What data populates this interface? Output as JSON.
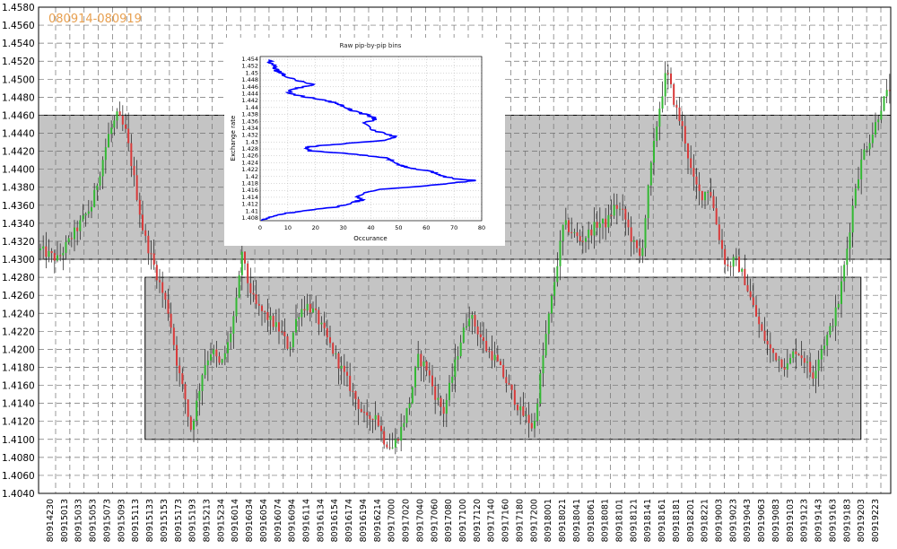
{
  "chart_data": [
    {
      "type": "candlestick",
      "title": "080914-080919",
      "ylim": [
        1.404,
        1.458
      ],
      "yticks": [
        "1.4580",
        "1.4560",
        "1.4540",
        "1.4520",
        "1.4500",
        "1.4480",
        "1.4460",
        "1.4440",
        "1.4420",
        "1.4400",
        "1.4380",
        "1.4360",
        "1.4340",
        "1.4320",
        "1.4300",
        "1.4280",
        "1.4260",
        "1.4240",
        "1.4220",
        "1.4200",
        "1.4180",
        "1.4160",
        "1.4140",
        "1.4120",
        "1.4100",
        "1.4080",
        "1.4060",
        "1.4040"
      ],
      "xticks": [
        "80914230",
        "80915013",
        "80915033",
        "80915053",
        "80915073",
        "80915093",
        "80915113",
        "80915133",
        "80915153",
        "80915173",
        "80915193",
        "80915213",
        "80915234",
        "80916014",
        "80916034",
        "80916054",
        "80916074",
        "80916094",
        "80916114",
        "80916134",
        "80916154",
        "80916174",
        "80916194",
        "80916214",
        "80917000",
        "80917020",
        "80917040",
        "80917060",
        "80917080",
        "80917100",
        "80917120",
        "80917140",
        "80917160",
        "80917180",
        "80917200",
        "80918001",
        "80918021",
        "80918041",
        "80918061",
        "80918081",
        "80918101",
        "80918121",
        "80918141",
        "80918161",
        "80918181",
        "80918201",
        "80918221",
        "80919003",
        "80919023",
        "80919043",
        "80919063",
        "80919083",
        "80919103",
        "80919123",
        "80919143",
        "80919163",
        "80919183",
        "80919203",
        "80919223"
      ],
      "path": [
        [
          0,
          1.431
        ],
        [
          2,
          1.43
        ],
        [
          4,
          1.433
        ],
        [
          6,
          1.436
        ],
        [
          8,
          1.444
        ],
        [
          9,
          1.446
        ],
        [
          10,
          1.444
        ],
        [
          12,
          1.433
        ],
        [
          13,
          1.43
        ],
        [
          14,
          1.427
        ],
        [
          15,
          1.424
        ],
        [
          16,
          1.418
        ],
        [
          17,
          1.414
        ],
        [
          17.5,
          1.411
        ],
        [
          18,
          1.413
        ],
        [
          19,
          1.418
        ],
        [
          20,
          1.42
        ],
        [
          21,
          1.418
        ],
        [
          22,
          1.421
        ],
        [
          23,
          1.426
        ],
        [
          23.5,
          1.431
        ],
        [
          24,
          1.428
        ],
        [
          25,
          1.425
        ],
        [
          26,
          1.424
        ],
        [
          27,
          1.423
        ],
        [
          28,
          1.422
        ],
        [
          29,
          1.42
        ],
        [
          30,
          1.424
        ],
        [
          31,
          1.425
        ],
        [
          32,
          1.424
        ],
        [
          33,
          1.422
        ],
        [
          34,
          1.42
        ],
        [
          35,
          1.418
        ],
        [
          36,
          1.416
        ],
        [
          37,
          1.414
        ],
        [
          38,
          1.412
        ],
        [
          39,
          1.413
        ],
        [
          40,
          1.41
        ],
        [
          41,
          1.409
        ],
        [
          42,
          1.411
        ],
        [
          43,
          1.414
        ],
        [
          44,
          1.419
        ],
        [
          45,
          1.418
        ],
        [
          46,
          1.415
        ],
        [
          47,
          1.413
        ],
        [
          48,
          1.417
        ],
        [
          49,
          1.421
        ],
        [
          50,
          1.424
        ],
        [
          51,
          1.422
        ],
        [
          52,
          1.42
        ],
        [
          53,
          1.419
        ],
        [
          54,
          1.417
        ],
        [
          55,
          1.415
        ],
        [
          56,
          1.413
        ],
        [
          57,
          1.412
        ],
        [
          57.5,
          1.411
        ],
        [
          58,
          1.415
        ],
        [
          59,
          1.422
        ],
        [
          60,
          1.428
        ],
        [
          61,
          1.434
        ],
        [
          62,
          1.433
        ],
        [
          63,
          1.432
        ],
        [
          64,
          1.433
        ],
        [
          65,
          1.434
        ],
        [
          66,
          1.434
        ],
        [
          67,
          1.436
        ],
        [
          68,
          1.435
        ],
        [
          69,
          1.432
        ],
        [
          70,
          1.43
        ],
        [
          71,
          1.439
        ],
        [
          72,
          1.446
        ],
        [
          73,
          1.451
        ],
        [
          73.5,
          1.449
        ],
        [
          74,
          1.447
        ],
        [
          75,
          1.444
        ],
        [
          76,
          1.439
        ],
        [
          77,
          1.437
        ],
        [
          78,
          1.438
        ],
        [
          79,
          1.433
        ],
        [
          80,
          1.429
        ],
        [
          81,
          1.43
        ],
        [
          82,
          1.428
        ],
        [
          83,
          1.425
        ],
        [
          84,
          1.422
        ],
        [
          85,
          1.42
        ],
        [
          86,
          1.419
        ],
        [
          87,
          1.418
        ],
        [
          88,
          1.42
        ],
        [
          89,
          1.419
        ],
        [
          90,
          1.417
        ],
        [
          91,
          1.42
        ],
        [
          92,
          1.422
        ],
        [
          93,
          1.425
        ],
        [
          94,
          1.431
        ],
        [
          95,
          1.438
        ],
        [
          96,
          1.442
        ],
        [
          97,
          1.444
        ],
        [
          98,
          1.447
        ],
        [
          99,
          1.449
        ]
      ],
      "bands": [
        {
          "y_top": 1.446,
          "y_bottom": 1.43,
          "x_start": 0,
          "x_end": 100
        },
        {
          "y_top": 1.428,
          "y_bottom": 1.41,
          "x_start": 12.5,
          "x_end": 96.5
        }
      ],
      "grid": true
    },
    {
      "type": "line",
      "title": "Raw pip-by-pip bins",
      "xlabel": "Occurance",
      "ylabel": "Exchange rate",
      "xlim": [
        0,
        80
      ],
      "ylim": [
        1.408,
        1.455
      ],
      "xticks": [
        0,
        10,
        20,
        30,
        40,
        50,
        60,
        70,
        80
      ],
      "yticks": [
        "1.454",
        "1.452",
        "1.45",
        "1.448",
        "1.446",
        "1.444",
        "1.442",
        "1.44",
        "1.438",
        "1.436",
        "1.434",
        "1.432",
        "1.43",
        "1.428",
        "1.426",
        "1.424",
        "1.422",
        "1.42",
        "1.418",
        "1.416",
        "1.414",
        "1.412",
        "1.41",
        "1.408"
      ],
      "series": [
        {
          "color": "#0000ff",
          "points": [
            [
              1,
              1.408
            ],
            [
              3,
              1.409
            ],
            [
              8,
              1.41
            ],
            [
              18,
              1.411
            ],
            [
              28,
              1.412
            ],
            [
              33,
              1.413
            ],
            [
              37,
              1.414
            ],
            [
              35,
              1.415
            ],
            [
              38,
              1.416
            ],
            [
              44,
              1.417
            ],
            [
              60,
              1.418
            ],
            [
              72,
              1.419
            ],
            [
              78,
              1.4195
            ],
            [
              70,
              1.42
            ],
            [
              65,
              1.421
            ],
            [
              62,
              1.422
            ],
            [
              55,
              1.423
            ],
            [
              50,
              1.424
            ],
            [
              48,
              1.425
            ],
            [
              45,
              1.426
            ],
            [
              35,
              1.427
            ],
            [
              18,
              1.428
            ],
            [
              16,
              1.429
            ],
            [
              22,
              1.4295
            ],
            [
              30,
              1.43
            ],
            [
              44,
              1.431
            ],
            [
              49,
              1.432
            ],
            [
              45,
              1.433
            ],
            [
              40,
              1.434
            ],
            [
              38,
              1.436
            ],
            [
              42,
              1.437
            ],
            [
              40,
              1.438
            ],
            [
              35,
              1.439
            ],
            [
              32,
              1.44
            ],
            [
              30,
              1.441
            ],
            [
              26,
              1.442
            ],
            [
              20,
              1.443
            ],
            [
              12,
              1.444
            ],
            [
              10,
              1.445
            ],
            [
              14,
              1.446
            ],
            [
              19,
              1.447
            ],
            [
              14,
              1.448
            ],
            [
              10,
              1.449
            ],
            [
              8,
              1.45
            ],
            [
              6,
              1.451
            ],
            [
              5,
              1.452
            ],
            [
              4,
              1.453
            ],
            [
              3,
              1.454
            ]
          ]
        }
      ],
      "grid": true
    }
  ]
}
